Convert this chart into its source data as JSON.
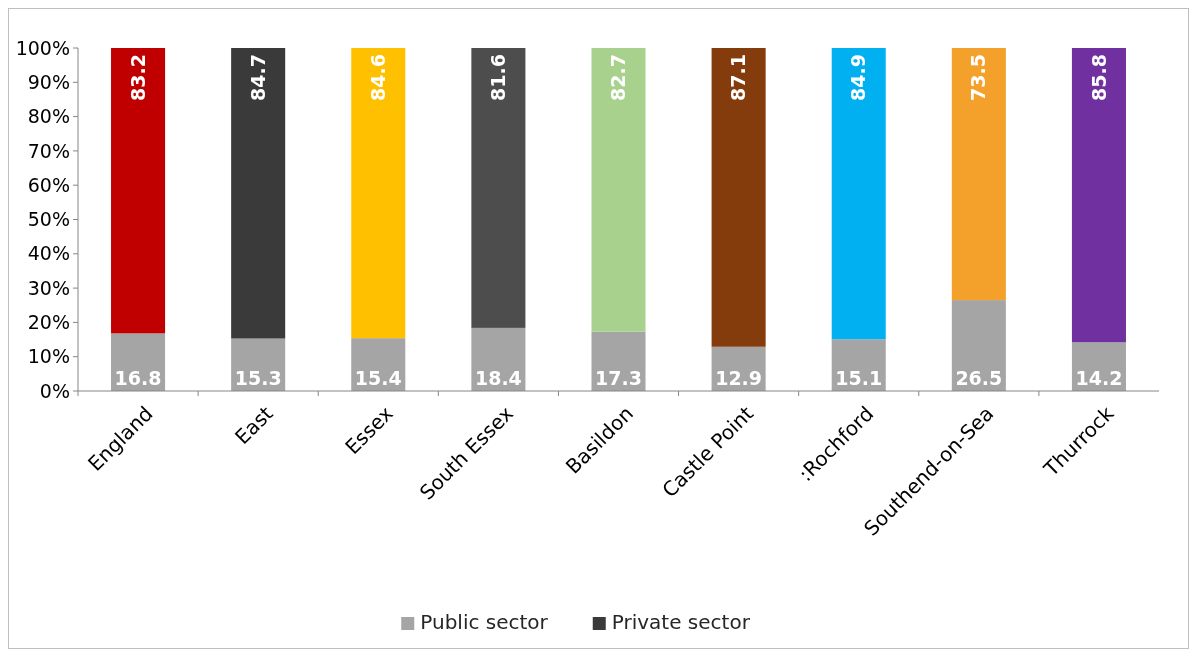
{
  "chart_data": {
    "type": "bar",
    "stacked": true,
    "categories": [
      "England",
      "East",
      "Essex",
      "South Essex",
      "Basildon",
      "Castle Point",
      ":Rochford",
      "Southend-on-Sea",
      "Thurrock"
    ],
    "series": [
      {
        "name": "Public sector",
        "color": "#a5a5a5",
        "values": [
          16.8,
          15.3,
          15.4,
          18.4,
          17.3,
          12.9,
          15.1,
          26.5,
          14.2
        ]
      },
      {
        "name": "Private sector",
        "color": "#3a3a3a",
        "colors": [
          "#c00000",
          "#3a3a3a",
          "#ffc000",
          "#4d4d4d",
          "#a9d18e",
          "#843c0c",
          "#00b0f0",
          "#f4a12c",
          "#7030a0"
        ],
        "values": [
          83.2,
          84.7,
          84.6,
          81.6,
          82.7,
          87.1,
          84.9,
          73.5,
          85.8
        ]
      }
    ],
    "ylim": [
      0,
      100
    ],
    "yticks": [
      {
        "value": 0,
        "label": "0%"
      },
      {
        "value": 10,
        "label": "10%"
      },
      {
        "value": 20,
        "label": "20%"
      },
      {
        "value": 30,
        "label": "30%"
      },
      {
        "value": 40,
        "label": "40%"
      },
      {
        "value": 50,
        "label": "50%"
      },
      {
        "value": 60,
        "label": "60%"
      },
      {
        "value": 70,
        "label": "70%"
      },
      {
        "value": 80,
        "label": "80%"
      },
      {
        "value": 90,
        "label": "90%"
      },
      {
        "value": 100,
        "label": "100%"
      }
    ],
    "data_labels": true,
    "grid": false,
    "legend": "bottom"
  }
}
